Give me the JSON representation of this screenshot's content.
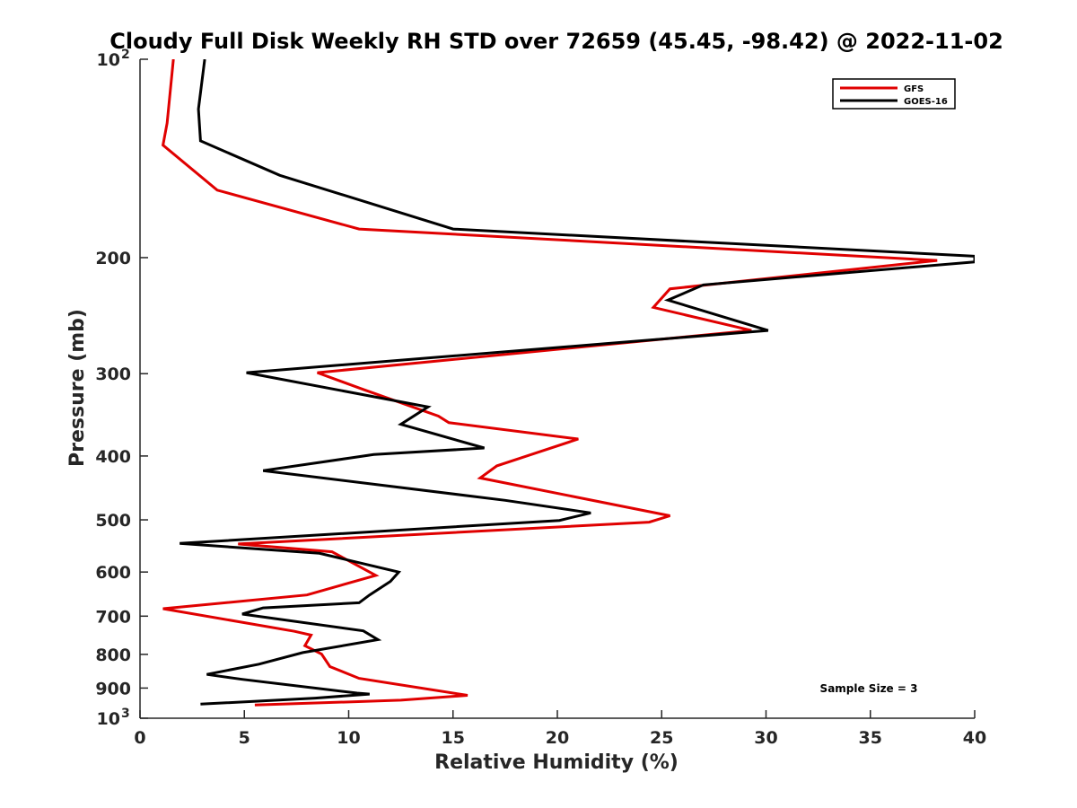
{
  "chart_data": {
    "type": "line",
    "title": "Cloudy Full Disk Weekly RH STD over 72659 (45.45, -98.42) @ 2022-11-02",
    "xlabel": "Relative Humidity (%)",
    "ylabel": "Pressure (mb)",
    "xlim": [
      0,
      40
    ],
    "ylim": [
      100,
      1000
    ],
    "y_scale": "log",
    "y_reversed": true,
    "grid": false,
    "legend_position": "top-right",
    "x_ticks": [
      {
        "value": 0,
        "label": "0"
      },
      {
        "value": 5,
        "label": "5"
      },
      {
        "value": 10,
        "label": "10"
      },
      {
        "value": 15,
        "label": "15"
      },
      {
        "value": 20,
        "label": "20"
      },
      {
        "value": 25,
        "label": "25"
      },
      {
        "value": 30,
        "label": "30"
      },
      {
        "value": 35,
        "label": "35"
      },
      {
        "value": 40,
        "label": "40"
      }
    ],
    "y_ticks": [
      {
        "value": 100,
        "label": "10",
        "sup": "2"
      },
      {
        "value": 200,
        "label": "200"
      },
      {
        "value": 300,
        "label": "300"
      },
      {
        "value": 400,
        "label": "400"
      },
      {
        "value": 500,
        "label": "500"
      },
      {
        "value": 600,
        "label": "600"
      },
      {
        "value": 700,
        "label": "700"
      },
      {
        "value": 800,
        "label": "800"
      },
      {
        "value": 900,
        "label": "900"
      },
      {
        "value": 1000,
        "label": "10",
        "sup": "3"
      }
    ],
    "series": [
      {
        "name": "GFS",
        "color": "#e00000",
        "points": [
          [
            1.6,
            100
          ],
          [
            1.3,
            125
          ],
          [
            1.1,
            135
          ],
          [
            3.7,
            158
          ],
          [
            10.5,
            181
          ],
          [
            38.2,
            202
          ],
          [
            25.4,
            223
          ],
          [
            24.6,
            238
          ],
          [
            29.3,
            258
          ],
          [
            8.5,
            299
          ],
          [
            10.7,
            317
          ],
          [
            14.3,
            348
          ],
          [
            14.8,
            356
          ],
          [
            21.0,
            377
          ],
          [
            17.1,
            414
          ],
          [
            16.3,
            432
          ],
          [
            25.4,
            493
          ],
          [
            24.4,
            504
          ],
          [
            4.7,
            544
          ],
          [
            9.2,
            559
          ],
          [
            11.3,
            607
          ],
          [
            8.0,
            650
          ],
          [
            1.1,
            682
          ],
          [
            7.4,
            738
          ],
          [
            8.2,
            748
          ],
          [
            7.9,
            776
          ],
          [
            8.7,
            799
          ],
          [
            9.1,
            835
          ],
          [
            10.5,
            870
          ],
          [
            15.7,
            923
          ],
          [
            12.5,
            939
          ],
          [
            5.5,
            955
          ]
        ]
      },
      {
        "name": "GOES-16",
        "color": "#000000",
        "points": [
          [
            3.1,
            100
          ],
          [
            2.8,
            119
          ],
          [
            2.9,
            133
          ],
          [
            6.7,
            150
          ],
          [
            15.0,
            181
          ],
          [
            40.0,
            199
          ],
          [
            40.0,
            203
          ],
          [
            27.0,
            220
          ],
          [
            25.3,
            232
          ],
          [
            30.1,
            258
          ],
          [
            5.1,
            299
          ],
          [
            13.8,
            337
          ],
          [
            12.5,
            358
          ],
          [
            16.5,
            389
          ],
          [
            11.2,
            398
          ],
          [
            5.9,
            421
          ],
          [
            17.5,
            467
          ],
          [
            21.6,
            488
          ],
          [
            20.1,
            501
          ],
          [
            1.9,
            543
          ],
          [
            8.6,
            562
          ],
          [
            12.4,
            600
          ],
          [
            12.0,
            620
          ],
          [
            11.0,
            650
          ],
          [
            10.5,
            668
          ],
          [
            5.9,
            680
          ],
          [
            4.9,
            695
          ],
          [
            10.7,
            737
          ],
          [
            11.4,
            760
          ],
          [
            7.8,
            795
          ],
          [
            5.7,
            828
          ],
          [
            3.2,
            858
          ],
          [
            4.9,
            873
          ],
          [
            10.4,
            916
          ],
          [
            11.0,
            919
          ],
          [
            8.4,
            932
          ],
          [
            2.9,
            952
          ]
        ]
      }
    ],
    "annotation": "Sample Size = 3"
  }
}
